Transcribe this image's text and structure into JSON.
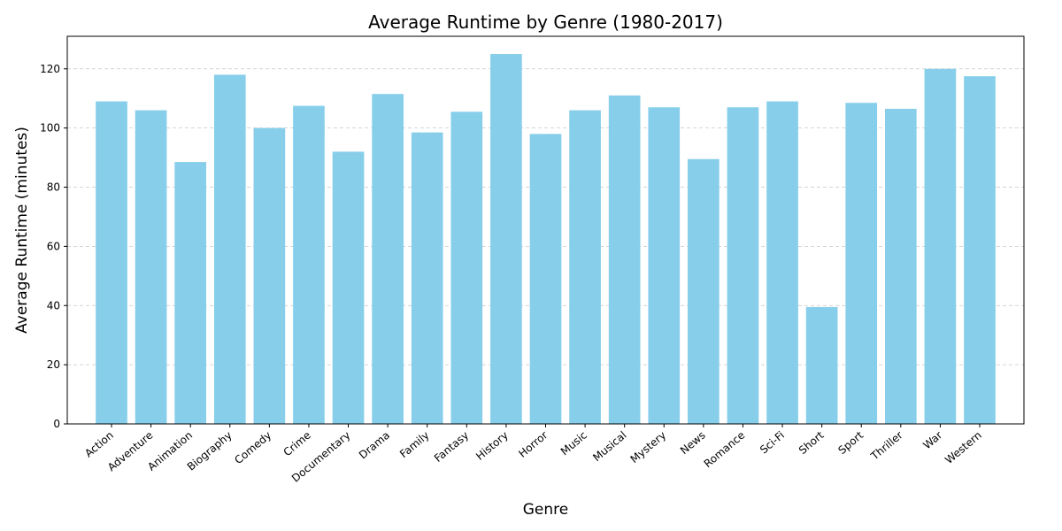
{
  "chart_data": {
    "type": "bar",
    "title": "Average Runtime by Genre (1980-2017)",
    "xlabel": "Genre",
    "ylabel": "Average Runtime (minutes)",
    "categories": [
      "Action",
      "Adventure",
      "Animation",
      "Biography",
      "Comedy",
      "Crime",
      "Documentary",
      "Drama",
      "Family",
      "Fantasy",
      "History",
      "Horror",
      "Music",
      "Musical",
      "Mystery",
      "News",
      "Romance",
      "Sci-Fi",
      "Short",
      "Sport",
      "Thriller",
      "War",
      "Western"
    ],
    "values": [
      109,
      106,
      88.5,
      118,
      100,
      107.5,
      92,
      111.5,
      98.5,
      105.5,
      125,
      98,
      106,
      111,
      107,
      89.5,
      107,
      109,
      39.5,
      108.5,
      106.5,
      120,
      117.5
    ],
    "ylim": [
      0,
      131
    ],
    "yticks": [
      0,
      20,
      40,
      60,
      80,
      100,
      120
    ],
    "grid": "y-dashed",
    "bar_color": "#87CEEB",
    "grid_color": "#c8c8c8"
  }
}
